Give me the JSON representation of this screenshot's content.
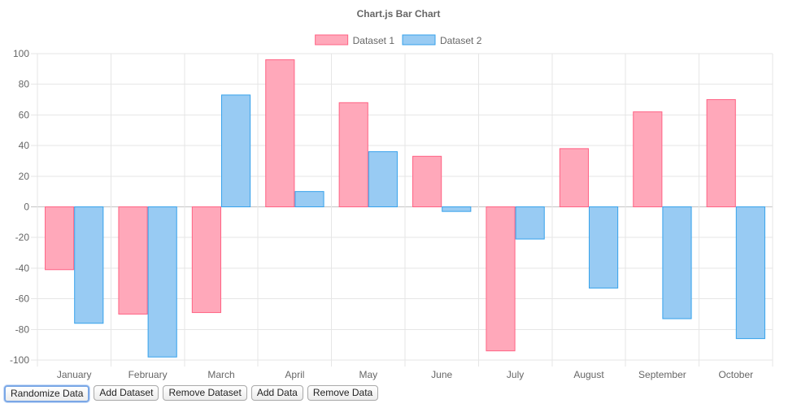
{
  "chart_data": {
    "type": "bar",
    "title": "Chart.js Bar Chart",
    "categories": [
      "January",
      "February",
      "March",
      "April",
      "May",
      "June",
      "July",
      "August",
      "September",
      "October"
    ],
    "series": [
      {
        "name": "Dataset 1",
        "values": [
          -41,
          -70,
          -69,
          96,
          68,
          33,
          -94,
          38,
          62,
          70
        ],
        "fill": "#ffa8ba",
        "stroke": "#ff6384"
      },
      {
        "name": "Dataset 2",
        "values": [
          -76,
          -98,
          73,
          10,
          36,
          -3,
          -21,
          -53,
          -73,
          -86
        ],
        "fill": "#98cbf3",
        "stroke": "#36a2eb"
      }
    ],
    "ylim": [
      -100,
      100
    ],
    "yticks": [
      100,
      80,
      60,
      40,
      20,
      0,
      -20,
      -40,
      -60,
      -80,
      -100
    ],
    "grid": true,
    "legend": "top-center"
  },
  "controls": {
    "randomize": "Randomize Data",
    "add_dataset": "Add Dataset",
    "remove_dataset": "Remove Dataset",
    "add_data": "Add Data",
    "remove_data": "Remove Data"
  }
}
